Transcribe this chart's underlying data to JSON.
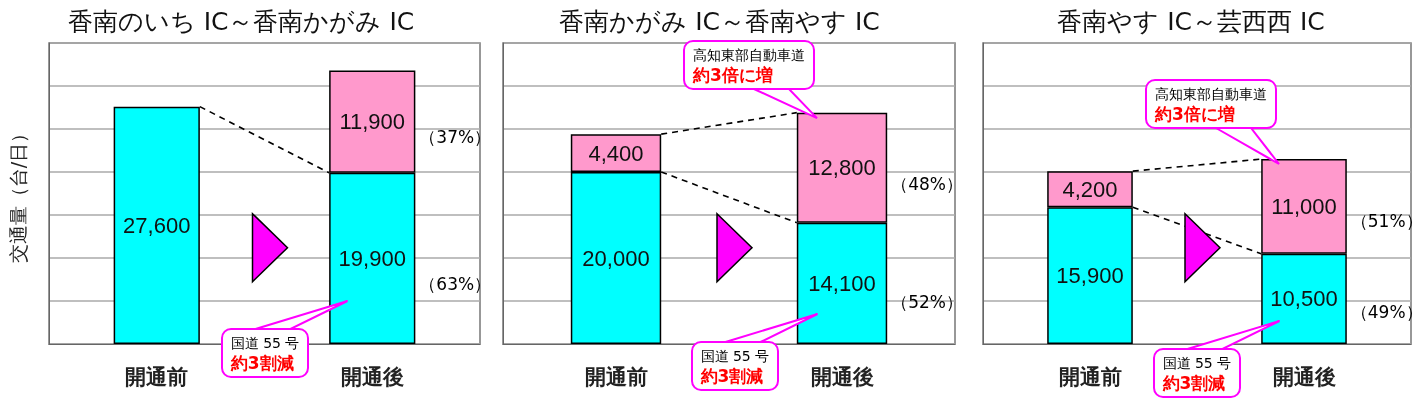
{
  "chart_data": [
    {
      "type": "bar",
      "title": "香南のいち IC～香南かがみ IC",
      "ylabel": "交通量（台/日）",
      "categories": [
        "開通前",
        "開通後"
      ],
      "stacked": true,
      "grid": "y",
      "tick_labels": "x",
      "series": [
        {
          "color": "#00ffff",
          "values": [
            27600,
            19900
          ],
          "value_labels": [
            "27,600",
            "19,900"
          ]
        },
        {
          "color": "#ff99cc",
          "values": [
            null,
            11900
          ],
          "value_labels": [
            null,
            "11,900"
          ]
        }
      ],
      "annotations": [
        "（37%）",
        "（63%）",
        "国道 55 号",
        "約3割減"
      ]
    },
    {
      "type": "bar",
      "title": "香南かがみ IC～香南やす IC",
      "categories": [
        "開通前",
        "開通後"
      ],
      "stacked": true,
      "grid": "y",
      "tick_labels": "x",
      "series": [
        {
          "color": "#00ffff",
          "values": [
            20000,
            14100
          ],
          "value_labels": [
            "20,000",
            "14,100"
          ]
        },
        {
          "color": "#ff99cc",
          "values": [
            4400,
            12800
          ],
          "value_labels": [
            "4,400",
            "12,800"
          ]
        }
      ],
      "annotations": [
        "（48%）",
        "（52%）",
        "高知東部自動車道",
        "約3倍に増",
        "国道 55 号",
        "約3割減"
      ]
    },
    {
      "type": "bar",
      "title": "香南やす IC～芸西西 IC",
      "categories": [
        "開通前",
        "開通後"
      ],
      "stacked": true,
      "grid": "y",
      "tick_labels": "x",
      "series": [
        {
          "color": "#00ffff",
          "values": [
            15900,
            10500
          ],
          "value_labels": [
            "15,900",
            "10,500"
          ]
        },
        {
          "color": "#ff99cc",
          "values": [
            4200,
            11000
          ],
          "value_labels": [
            "4,200",
            "11,000"
          ]
        }
      ],
      "annotations": [
        "（51%）",
        "（49%）",
        "高知東部自動車道",
        "約3倍に増",
        "国道 55 号",
        "約3割減"
      ]
    }
  ]
}
